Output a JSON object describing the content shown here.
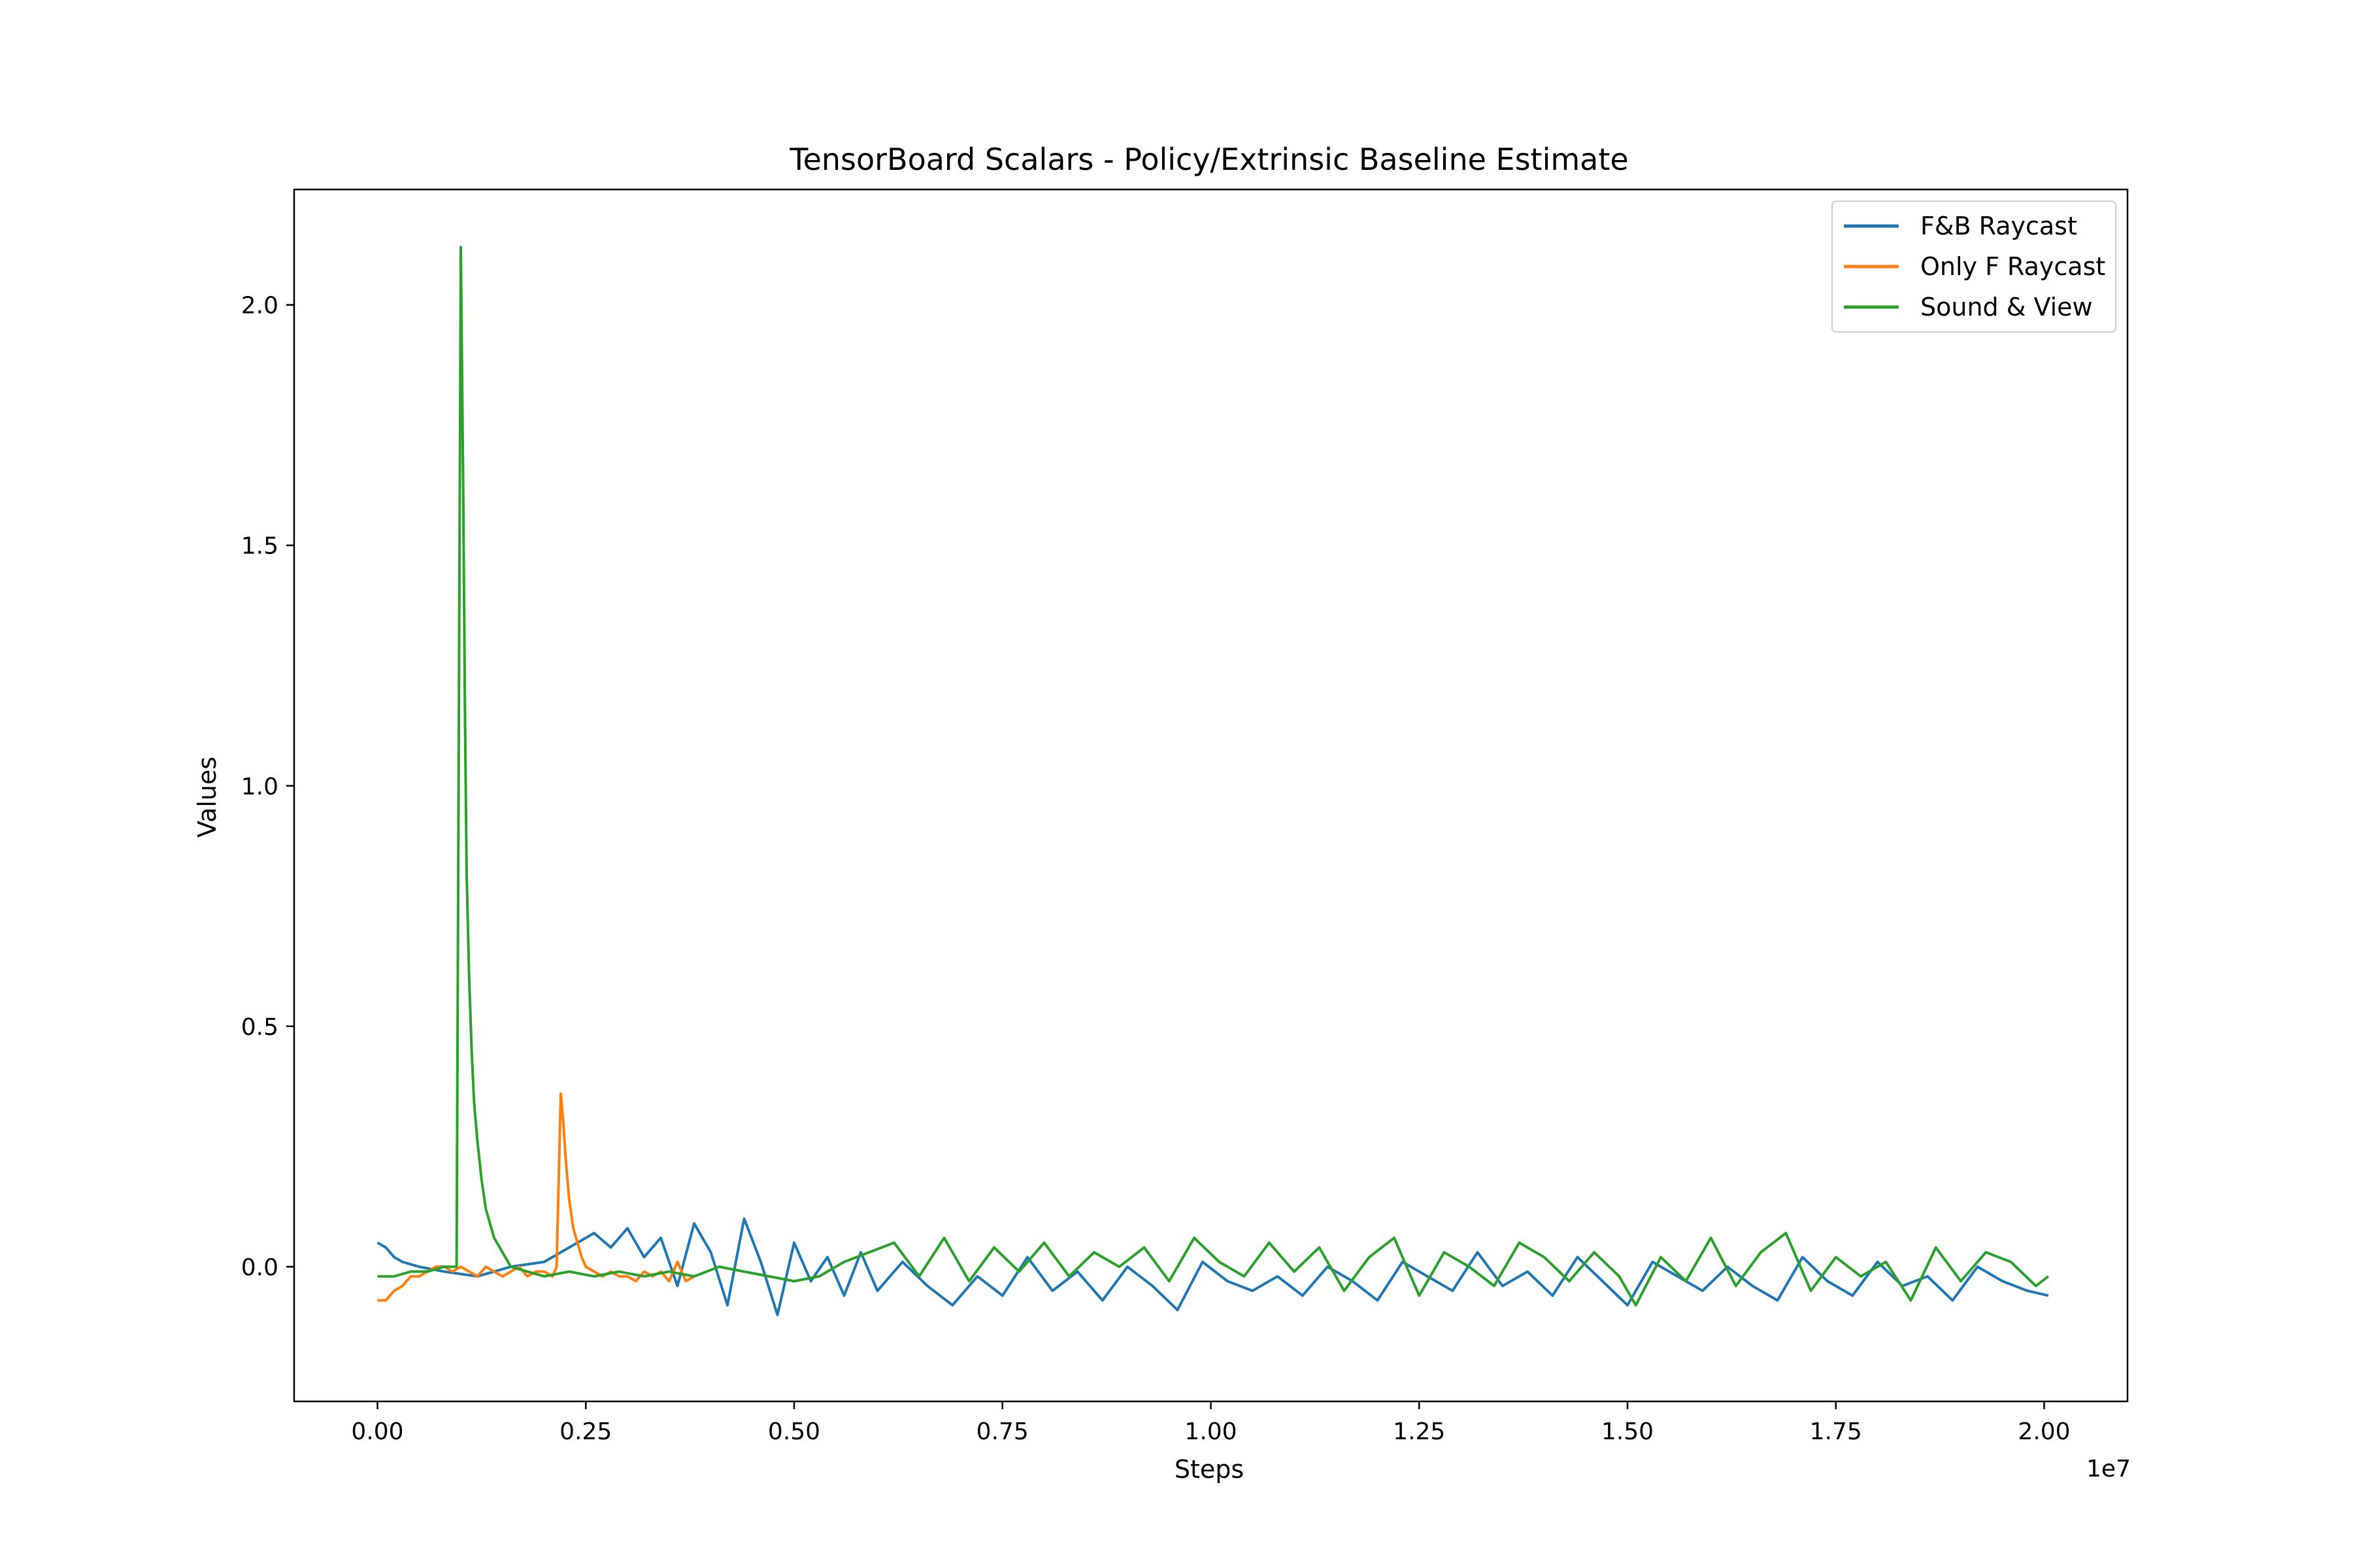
{
  "chart_data": {
    "type": "line",
    "title": "TensorBoard Scalars - Policy/Extrinsic Baseline Estimate",
    "xlabel": "Steps",
    "ylabel": "Values",
    "x_offset_label": "1e7",
    "xlim": [
      -1000000,
      21000000
    ],
    "ylim": [
      -0.28,
      2.24
    ],
    "x_ticks": [
      0,
      2500000,
      5000000,
      7500000,
      10000000,
      12500000,
      15000000,
      17500000,
      20000000
    ],
    "x_tick_labels": [
      "0.00",
      "0.25",
      "0.50",
      "0.75",
      "1.00",
      "1.25",
      "1.50",
      "1.75",
      "2.00"
    ],
    "y_ticks": [
      0,
      0.5,
      1,
      1.5,
      2
    ],
    "y_tick_labels": [
      "0.0",
      "0.5",
      "1.0",
      "1.5",
      "2.0"
    ],
    "grid": false,
    "legend_position": "top-right",
    "series": [
      {
        "name": "F&B Raycast",
        "color": "#1f77b4",
        "x": [
          0,
          100000,
          200000,
          300000,
          500000,
          800000,
          1200000,
          1600000,
          2000000,
          2200000,
          2400000,
          2600000,
          2800000,
          3000000,
          3200000,
          3400000,
          3600000,
          3800000,
          4000000,
          4200000,
          4400000,
          4600000,
          4800000,
          5000000,
          5200000,
          5400000,
          5600000,
          5800000,
          6000000,
          6300000,
          6600000,
          6900000,
          7200000,
          7500000,
          7800000,
          8100000,
          8400000,
          8700000,
          9000000,
          9300000,
          9600000,
          9900000,
          10200000,
          10500000,
          10800000,
          11100000,
          11400000,
          11700000,
          12000000,
          12300000,
          12600000,
          12900000,
          13200000,
          13500000,
          13800000,
          14100000,
          14400000,
          14700000,
          15000000,
          15300000,
          15600000,
          15900000,
          16200000,
          16500000,
          16800000,
          17100000,
          17400000,
          17700000,
          18000000,
          18300000,
          18600000,
          18900000,
          19200000,
          19500000,
          19800000,
          20050000
        ],
        "y": [
          0.05,
          0.04,
          0.02,
          0.01,
          0.0,
          -0.01,
          -0.02,
          0.0,
          0.01,
          0.03,
          0.05,
          0.07,
          0.04,
          0.08,
          0.02,
          0.06,
          -0.04,
          0.09,
          0.03,
          -0.08,
          0.1,
          0.01,
          -0.1,
          0.05,
          -0.03,
          0.02,
          -0.06,
          0.03,
          -0.05,
          0.01,
          -0.04,
          -0.08,
          -0.02,
          -0.06,
          0.02,
          -0.05,
          -0.01,
          -0.07,
          0.0,
          -0.04,
          -0.09,
          0.01,
          -0.03,
          -0.05,
          -0.02,
          -0.06,
          0.0,
          -0.03,
          -0.07,
          0.01,
          -0.02,
          -0.05,
          0.03,
          -0.04,
          -0.01,
          -0.06,
          0.02,
          -0.03,
          -0.08,
          0.01,
          -0.02,
          -0.05,
          0.0,
          -0.04,
          -0.07,
          0.02,
          -0.03,
          -0.06,
          0.01,
          -0.04,
          -0.02,
          -0.07,
          0.0,
          -0.03,
          -0.05,
          -0.06
        ]
      },
      {
        "name": "Only F Raycast",
        "color": "#ff7f0e",
        "x": [
          0,
          100000,
          200000,
          300000,
          400000,
          500000,
          600000,
          700000,
          800000,
          900000,
          1000000,
          1100000,
          1200000,
          1300000,
          1400000,
          1500000,
          1600000,
          1700000,
          1800000,
          1900000,
          2000000,
          2100000,
          2150000,
          2200000,
          2230000,
          2260000,
          2300000,
          2350000,
          2400000,
          2450000,
          2500000,
          2600000,
          2700000,
          2800000,
          2900000,
          3000000,
          3100000,
          3200000,
          3300000,
          3400000,
          3500000,
          3600000,
          3700000,
          3800000
        ],
        "y": [
          -0.07,
          -0.07,
          -0.05,
          -0.04,
          -0.02,
          -0.02,
          -0.01,
          0.0,
          0.0,
          -0.01,
          0.0,
          -0.01,
          -0.02,
          0.0,
          -0.01,
          -0.02,
          -0.01,
          0.0,
          -0.02,
          -0.01,
          -0.01,
          -0.02,
          0.0,
          0.36,
          0.3,
          0.22,
          0.14,
          0.08,
          0.05,
          0.02,
          0.0,
          -0.01,
          -0.02,
          -0.01,
          -0.02,
          -0.02,
          -0.03,
          -0.01,
          -0.02,
          -0.01,
          -0.03,
          0.01,
          -0.03,
          -0.02
        ]
      },
      {
        "name": "Sound & View",
        "color": "#2ca02c",
        "x": [
          0,
          200000,
          400000,
          600000,
          800000,
          950000,
          1000000,
          1030000,
          1050000,
          1070000,
          1100000,
          1130000,
          1160000,
          1200000,
          1250000,
          1300000,
          1400000,
          1500000,
          1600000,
          1800000,
          2000000,
          2300000,
          2600000,
          2900000,
          3200000,
          3500000,
          3800000,
          4100000,
          4400000,
          4700000,
          5000000,
          5300000,
          5600000,
          5900000,
          6200000,
          6500000,
          6800000,
          7100000,
          7400000,
          7700000,
          8000000,
          8300000,
          8600000,
          8900000,
          9200000,
          9500000,
          9800000,
          10100000,
          10400000,
          10700000,
          11000000,
          11300000,
          11600000,
          11900000,
          12200000,
          12500000,
          12800000,
          13100000,
          13400000,
          13700000,
          14000000,
          14300000,
          14600000,
          14900000,
          15100000,
          15400000,
          15700000,
          16000000,
          16300000,
          16600000,
          16900000,
          17200000,
          17500000,
          17800000,
          18100000,
          18400000,
          18700000,
          19000000,
          19300000,
          19600000,
          19900000,
          20050000
        ],
        "y": [
          -0.02,
          -0.02,
          -0.01,
          -0.01,
          0.0,
          0.0,
          2.12,
          1.6,
          1.15,
          0.82,
          0.6,
          0.45,
          0.34,
          0.26,
          0.18,
          0.12,
          0.06,
          0.03,
          0.0,
          -0.01,
          -0.02,
          -0.01,
          -0.02,
          -0.01,
          -0.02,
          -0.01,
          -0.02,
          0.0,
          -0.01,
          -0.02,
          -0.03,
          -0.02,
          0.01,
          0.03,
          0.05,
          -0.02,
          0.06,
          -0.03,
          0.04,
          -0.01,
          0.05,
          -0.02,
          0.03,
          0.0,
          0.04,
          -0.03,
          0.06,
          0.01,
          -0.02,
          0.05,
          -0.01,
          0.04,
          -0.05,
          0.02,
          0.06,
          -0.06,
          0.03,
          0.0,
          -0.04,
          0.05,
          0.02,
          -0.03,
          0.03,
          -0.02,
          -0.08,
          0.02,
          -0.03,
          0.06,
          -0.04,
          0.03,
          0.07,
          -0.05,
          0.02,
          -0.02,
          0.01,
          -0.07,
          0.04,
          -0.03,
          0.03,
          0.01,
          -0.04,
          -0.02
        ]
      }
    ]
  }
}
